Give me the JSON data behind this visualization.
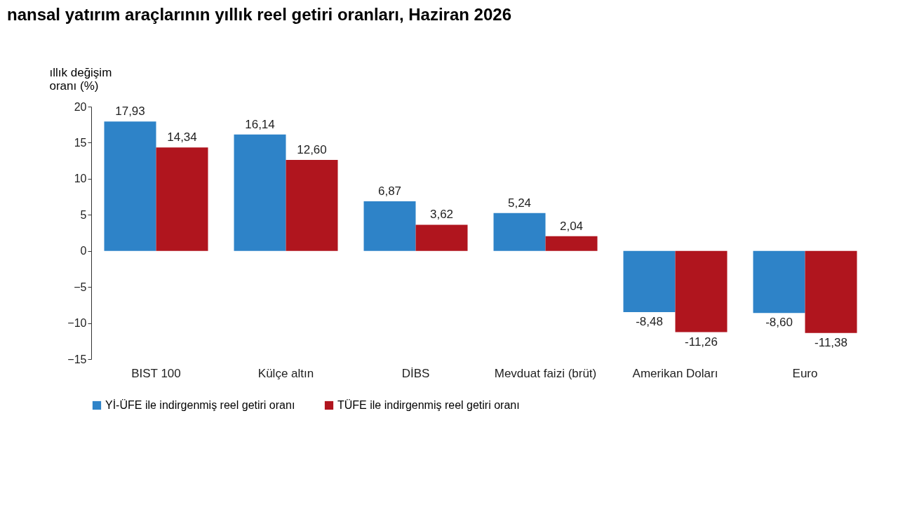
{
  "chart_data": {
    "type": "bar",
    "title": "nansal yatırım araçlarının yıllık reel getiri oranları, Haziran 2026",
    "ylabel": "ıllık değişim\noranı (%)",
    "categories": [
      "BIST 100",
      "Külçe altın",
      "DİBS",
      "Mevduat faizi (brüt)",
      "Amerikan Doları",
      "Euro"
    ],
    "series": [
      {
        "name": "Yİ-ÜFE ile indirgenmiş reel getiri oranı",
        "color": "#2e83c8",
        "values": [
          17.93,
          16.14,
          6.87,
          5.24,
          -8.48,
          -8.6
        ],
        "value_labels": [
          "17,93",
          "16,14",
          "6,87",
          "5,24",
          "-8,48",
          "-8,60"
        ]
      },
      {
        "name": "TÜFE ile indirgenmiş reel getiri oranı",
        "color": "#b0151e",
        "values": [
          14.34,
          12.6,
          3.62,
          2.04,
          -11.26,
          -11.38
        ],
        "value_labels": [
          "14,34",
          "12,60",
          "3,62",
          "2,04",
          "-11,26",
          "-11,38"
        ]
      }
    ],
    "ylim": [
      -15,
      20
    ],
    "yticks": [
      -15,
      -10,
      -5,
      0,
      5,
      10,
      15,
      20
    ],
    "grid": false,
    "legend": "bottom"
  }
}
